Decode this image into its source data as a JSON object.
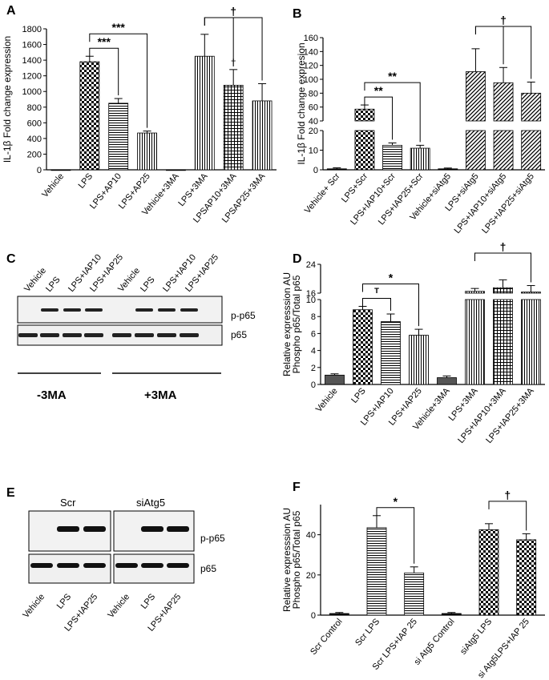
{
  "panels": {
    "A": "A",
    "B": "B",
    "C": "C",
    "D": "D",
    "E": "E",
    "F": "F"
  },
  "chart_data": [
    {
      "id": "A",
      "type": "bar",
      "ylabel": "IL-1β Fold change expression",
      "yticks": [
        0,
        200,
        400,
        600,
        800,
        1000,
        1200,
        1400,
        1600,
        1800
      ],
      "ylim": [
        0,
        1800
      ],
      "categories": [
        "Vehicle",
        "LPS",
        "LPS+AP10",
        "LPS+AP25",
        "Vehicle+3MA",
        "LPS+3MA",
        "LPSAP10+3MA",
        "LPSAP25+3MA"
      ],
      "values": [
        0,
        1380,
        850,
        470,
        0,
        1450,
        1080,
        880
      ],
      "errors": [
        0,
        70,
        60,
        25,
        0,
        280,
        200,
        220
      ],
      "patterns": [
        "solid",
        "check",
        "hlines",
        "vlines",
        "solid",
        "vlines",
        "grid",
        "vlines"
      ],
      "annotations": [
        {
          "from": 1,
          "to": 2,
          "label": "***"
        },
        {
          "from": 1,
          "to": 3,
          "label": "***"
        },
        {
          "from": 5,
          "to": 6,
          "label": ""
        },
        {
          "from": 5,
          "to": 7,
          "label": "†"
        },
        {
          "at": 6,
          "label": "†"
        }
      ]
    },
    {
      "id": "B",
      "type": "bar",
      "ylabel": "IL-1β Fold change expresion",
      "yticks_low": [
        0,
        10,
        20
      ],
      "yticks_high": [
        40,
        60,
        80,
        100,
        120,
        140,
        160
      ],
      "ylim": [
        0,
        160
      ],
      "break": [
        20,
        40
      ],
      "categories": [
        "Vehicle+ Scr",
        "LPS+Scr",
        "LPS+IAP10+Scr",
        "LPS+IAP25+Scr",
        "Vehicle+siAtg5",
        "LPS+siAtg5",
        "LPS+IAP10+siAtg5",
        "LPS+IAP25+siAtg5"
      ],
      "values": [
        0.5,
        57,
        12.5,
        11,
        0.5,
        111,
        95,
        80
      ],
      "errors": [
        0.5,
        6,
        1.2,
        1.5,
        0.4,
        33,
        22,
        16
      ],
      "patterns": [
        "solid",
        "check",
        "hlines",
        "vlines",
        "solid",
        "diag",
        "diag",
        "diag"
      ],
      "annotations": [
        {
          "from": 1,
          "to": 2,
          "label": "**"
        },
        {
          "from": 1,
          "to": 3,
          "label": "**"
        },
        {
          "from": 5,
          "to": 6,
          "label": ""
        },
        {
          "from": 5,
          "to": 7,
          "label": "†"
        }
      ]
    },
    {
      "id": "D",
      "type": "bar",
      "ylabel": "Relative expresssion AU",
      "ylabel2": "Phospho p65/Total p65",
      "yticks_low": [
        0,
        2,
        4,
        6,
        8,
        10
      ],
      "yticks_high": [
        16,
        24
      ],
      "ylim": [
        0,
        24
      ],
      "break": [
        10,
        16
      ],
      "categories": [
        "Vehicle",
        "LPS",
        "LPS+IAP10",
        "LPS+IAP25",
        "Vehicle+3MA",
        "LPS+3MA",
        "LPS+IAP10+3MA",
        "LPS+IAP25+3MA"
      ],
      "values": [
        1.1,
        8.8,
        7.4,
        5.8,
        0.8,
        16.5,
        17.5,
        16.3
      ],
      "errors": [
        0.15,
        0.4,
        0.9,
        0.7,
        0.2,
        0.8,
        2.2,
        1.8
      ],
      "patterns": [
        "gray",
        "check",
        "hlines",
        "vlines",
        "gray",
        "vlines",
        "grid",
        "vlines"
      ],
      "annotations": [
        {
          "from": 1,
          "to": 2,
          "label": "ᵀ"
        },
        {
          "from": 1,
          "to": 3,
          "label": "*"
        },
        {
          "from": 5,
          "to": 7,
          "label": "†"
        }
      ]
    },
    {
      "id": "F",
      "type": "bar",
      "ylabel": "Relative expresssion AU",
      "ylabel2": "Phospho p65/Total p65",
      "yticks": [
        0,
        20,
        40
      ],
      "ylim": [
        0,
        55
      ],
      "categories": [
        "Scr Control",
        "Scr LPS",
        "Scr LPS+IAP 25",
        "si Atg5 Control",
        "siAtg5 LPS",
        "si Atg5LPS+IAP 25"
      ],
      "values": [
        0.8,
        43.5,
        21,
        0.8,
        42.5,
        37.5
      ],
      "errors": [
        0.5,
        6,
        3,
        0.5,
        3,
        3
      ],
      "patterns": [
        "solid",
        "hlines",
        "hlines",
        "solid",
        "check",
        "check"
      ],
      "annotations": [
        {
          "from": 1,
          "to": 2,
          "label": "*"
        },
        {
          "from": 4,
          "to": 5,
          "label": "†"
        }
      ]
    }
  ],
  "blots": {
    "C": {
      "lanes": [
        "Vehicle",
        "LPS",
        "LPS+IAP10",
        "LPS+IAP25",
        "Vehicle",
        "LPS",
        "LPS+IAP10",
        "LPS+IAP25"
      ],
      "band1": "p-p65",
      "band2": "p65",
      "group1": "-3MA",
      "group2": "+3MA"
    },
    "E": {
      "header1": "Scr",
      "header2": "siAtg5",
      "lanes": [
        "Vehicle",
        "LPS",
        "LPS+IAP25",
        "Vehicle",
        "LPS",
        "LPS+IAP25"
      ],
      "band1": "p-p65",
      "band2": "p65"
    }
  }
}
